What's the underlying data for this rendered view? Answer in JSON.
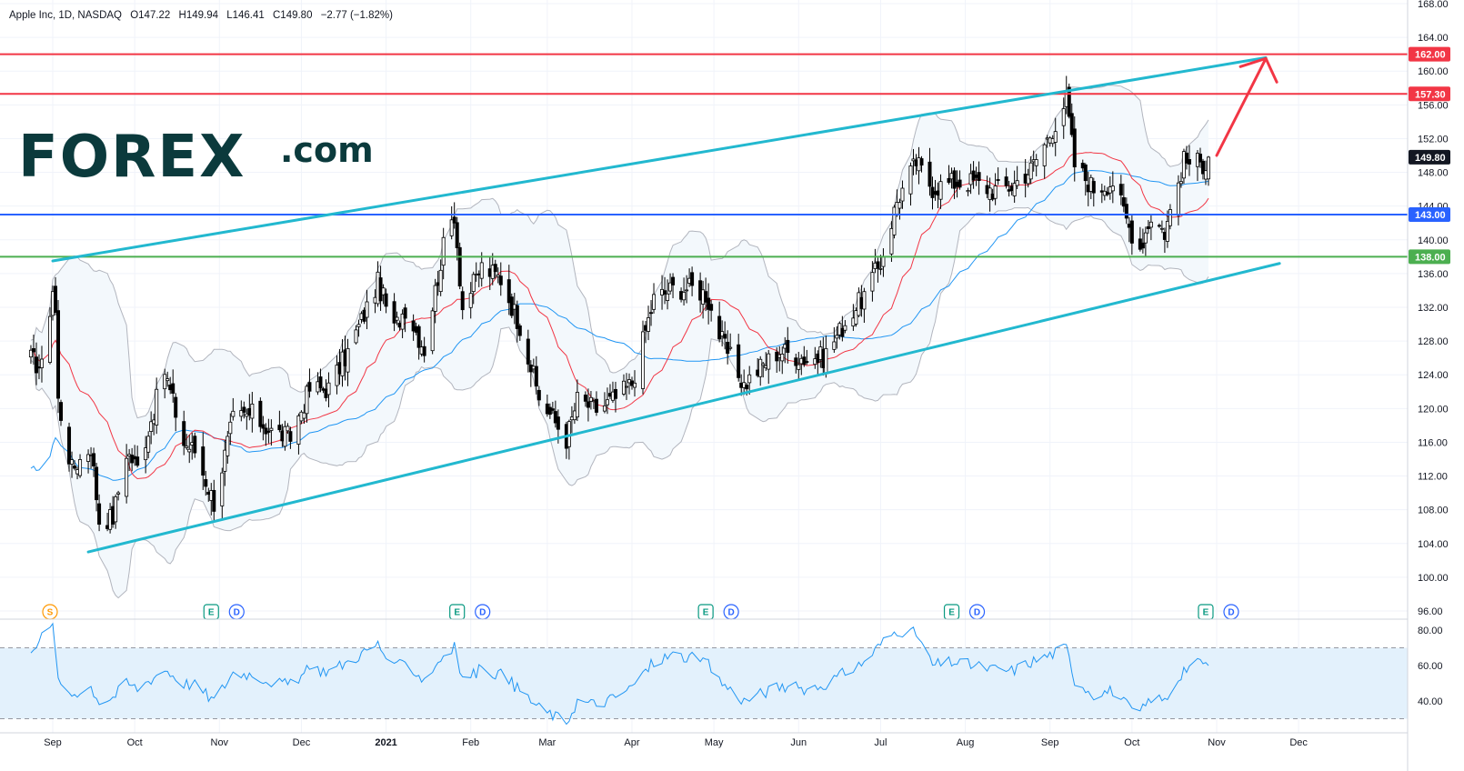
{
  "legend": {
    "symbol": "Apple Inc, 1D, NASDAQ",
    "open": "O147.22",
    "high": "H149.94",
    "low": "L146.41",
    "close": "C149.80",
    "change": "−2.77 (−1.82%)"
  },
  "logo": {
    "brand": "FOREX",
    "suffix": ".com"
  },
  "colors": {
    "up": "#ffffff",
    "down": "#000000",
    "candle_border": "#000000",
    "channel": "#22b8cf",
    "resistance": "#f23645",
    "support_blue": "#2962ff",
    "support_green": "#4caf50",
    "ma_fast": "#f23645",
    "ma_slow": "#2196f3",
    "bollinger": "#b2b5be",
    "bollinger_fill": "#f3f8fc",
    "rsi_line": "#2196f3",
    "rsi_fill": "#e3f1fc",
    "arrow": "#f23645",
    "last_price_bg": "#131722",
    "logo_main": "#0b3a3c",
    "logo_accent": "#2ecc71"
  },
  "chart_data": [
    {
      "type": "candlestick",
      "title": "Apple Inc, 1D, NASDAQ",
      "x_ticks": [
        "Sep",
        "Oct",
        "Nov",
        "Dec",
        "2021",
        "Feb",
        "Mar",
        "Apr",
        "May",
        "Jun",
        "Jul",
        "Aug",
        "Sep",
        "Oct",
        "Nov",
        "Dec"
      ],
      "y_ticks": [
        "168.00",
        "164.00",
        "160.00",
        "156.00",
        "152.00",
        "148.00",
        "144.00",
        "140.00",
        "136.00",
        "132.00",
        "128.00",
        "124.00",
        "120.00",
        "116.00",
        "112.00",
        "108.00",
        "104.00",
        "100.00",
        "96.00"
      ],
      "ylim": [
        94,
        168
      ],
      "close_anchors": [
        [
          "2020-08-24",
          125.9
        ],
        [
          "2020-08-28",
          124.8
        ],
        [
          "2020-09-01",
          134.2
        ],
        [
          "2020-09-02",
          131.4
        ],
        [
          "2020-09-03",
          120.9
        ],
        [
          "2020-09-08",
          112.8
        ],
        [
          "2020-09-15",
          115.5
        ],
        [
          "2020-09-18",
          106.8
        ],
        [
          "2020-09-23",
          107.1
        ],
        [
          "2020-09-28",
          114.9
        ],
        [
          "2020-10-02",
          113.0
        ],
        [
          "2020-10-12",
          124.4
        ],
        [
          "2020-10-19",
          115.9
        ],
        [
          "2020-10-23",
          115.0
        ],
        [
          "2020-10-30",
          108.9
        ],
        [
          "2020-11-06",
          118.7
        ],
        [
          "2020-11-13",
          119.3
        ],
        [
          "2020-11-20",
          117.3
        ],
        [
          "2020-11-27",
          116.6
        ],
        [
          "2020-12-04",
          122.3
        ],
        [
          "2020-12-11",
          122.4
        ],
        [
          "2020-12-18",
          126.7
        ],
        [
          "2020-12-29",
          134.9
        ],
        [
          "2021-01-04",
          129.4
        ],
        [
          "2021-01-08",
          132.0
        ],
        [
          "2021-01-15",
          127.1
        ],
        [
          "2021-01-22",
          139.1
        ],
        [
          "2021-01-26",
          143.2
        ],
        [
          "2021-01-29",
          131.9
        ],
        [
          "2021-02-05",
          136.8
        ],
        [
          "2021-02-12",
          135.4
        ],
        [
          "2021-02-19",
          129.9
        ],
        [
          "2021-02-26",
          121.3
        ],
        [
          "2021-03-08",
          116.4
        ],
        [
          "2021-03-12",
          121.0
        ],
        [
          "2021-03-19",
          119.9
        ],
        [
          "2021-03-26",
          121.2
        ],
        [
          "2021-04-01",
          123.0
        ],
        [
          "2021-04-09",
          133.0
        ],
        [
          "2021-04-16",
          134.2
        ],
        [
          "2021-04-23",
          134.3
        ],
        [
          "2021-04-28",
          133.6
        ],
        [
          "2021-05-04",
          127.9
        ],
        [
          "2021-05-12",
          122.8
        ],
        [
          "2021-05-18",
          124.9
        ],
        [
          "2021-05-25",
          126.9
        ],
        [
          "2021-06-04",
          125.9
        ],
        [
          "2021-06-10",
          126.1
        ],
        [
          "2021-06-18",
          130.2
        ],
        [
          "2021-06-25",
          133.4
        ],
        [
          "2021-07-01",
          137.3
        ],
        [
          "2021-07-07",
          144.6
        ],
        [
          "2021-07-14",
          149.2
        ],
        [
          "2021-07-20",
          146.2
        ],
        [
          "2021-07-27",
          146.8
        ],
        [
          "2021-08-04",
          146.9
        ],
        [
          "2021-08-11",
          145.9
        ],
        [
          "2021-08-18",
          146.4
        ],
        [
          "2021-08-25",
          148.4
        ],
        [
          "2021-09-01",
          152.5
        ],
        [
          "2021-09-07",
          156.7
        ],
        [
          "2021-09-10",
          148.9
        ],
        [
          "2021-09-17",
          146.1
        ],
        [
          "2021-09-24",
          146.9
        ],
        [
          "2021-09-30",
          141.5
        ],
        [
          "2021-10-04",
          139.1
        ],
        [
          "2021-10-08",
          142.9
        ],
        [
          "2021-10-13",
          140.9
        ],
        [
          "2021-10-20",
          149.3
        ],
        [
          "2021-10-27",
          149.0
        ],
        [
          "2021-10-29",
          149.8
        ]
      ],
      "series": [
        {
          "name": "",
          "kind": "moving-average-fast",
          "values": []
        },
        {
          "name": "",
          "kind": "moving-average-slow",
          "values": []
        },
        {
          "name": "",
          "kind": "bollinger-bands",
          "values": []
        }
      ],
      "price_labels": [
        {
          "text": "162.00",
          "value": 162,
          "color": "#f23645"
        },
        {
          "text": "157.30",
          "value": 157.3,
          "color": "#f23645"
        },
        {
          "text": "149.80",
          "value": 149.8,
          "color": "#131722"
        },
        {
          "text": "143.00",
          "value": 143,
          "color": "#2962ff"
        },
        {
          "text": "138.00",
          "value": 138,
          "color": "#4caf50"
        }
      ],
      "horizontal_levels": [
        {
          "value": 162,
          "color": "#f23645"
        },
        {
          "value": 157.3,
          "color": "#f23645"
        },
        {
          "value": 143,
          "color": "#2962ff"
        },
        {
          "value": 138,
          "color": "#4caf50"
        }
      ],
      "channel": {
        "upper": [
          [
            "2020-09-01",
            137.5
          ],
          [
            "2021-11-19",
            161.6
          ]
        ],
        "lower": [
          [
            "2020-09-14",
            103.0
          ],
          [
            "2021-11-24",
            137.2
          ]
        ]
      },
      "arrow": [
        [
          "2021-11-01",
          150.0
        ],
        [
          "2021-11-19",
          161.5
        ]
      ],
      "events": [
        {
          "date": "2020-08-31",
          "labels": [
            "S"
          ],
          "colors": [
            "#ff9800"
          ]
        },
        {
          "date": "2020-10-29",
          "labels": [
            "E",
            "D"
          ],
          "colors": [
            "#089981",
            "#2962ff"
          ]
        },
        {
          "date": "2021-01-27",
          "labels": [
            "E",
            "D"
          ],
          "colors": [
            "#089981",
            "#2962ff"
          ]
        },
        {
          "date": "2021-04-28",
          "labels": [
            "E",
            "D"
          ],
          "colors": [
            "#089981",
            "#2962ff"
          ]
        },
        {
          "date": "2021-07-27",
          "labels": [
            "E",
            "D"
          ],
          "colors": [
            "#089981",
            "#2962ff"
          ]
        },
        {
          "date": "2021-10-28",
          "labels": [
            "E",
            "D"
          ],
          "colors": [
            "#089981",
            "#2962ff"
          ]
        }
      ]
    },
    {
      "type": "line",
      "title": "",
      "y_ticks": [
        "80.00",
        "60.00",
        "40.00"
      ],
      "ylim": [
        26,
        82
      ],
      "bands": [
        70,
        30
      ],
      "values": [
        [
          "2020-08-24",
          70
        ],
        [
          "2020-08-28",
          76
        ],
        [
          "2020-09-01",
          82
        ],
        [
          "2020-09-02",
          70
        ],
        [
          "2020-09-03",
          50
        ],
        [
          "2020-09-08",
          44
        ],
        [
          "2020-09-15",
          48
        ],
        [
          "2020-09-18",
          40
        ],
        [
          "2020-09-23",
          42
        ],
        [
          "2020-09-28",
          50
        ],
        [
          "2020-10-02",
          47
        ],
        [
          "2020-10-12",
          58
        ],
        [
          "2020-10-19",
          50
        ],
        [
          "2020-10-23",
          49
        ],
        [
          "2020-10-30",
          40
        ],
        [
          "2020-11-06",
          56
        ],
        [
          "2020-11-13",
          55
        ],
        [
          "2020-11-20",
          51
        ],
        [
          "2020-11-27",
          49
        ],
        [
          "2020-12-04",
          58
        ],
        [
          "2020-12-11",
          57
        ],
        [
          "2020-12-18",
          62
        ],
        [
          "2020-12-29",
          72
        ],
        [
          "2021-01-04",
          58
        ],
        [
          "2021-01-08",
          62
        ],
        [
          "2021-01-15",
          52
        ],
        [
          "2021-01-22",
          66
        ],
        [
          "2021-01-26",
          70
        ],
        [
          "2021-01-29",
          52
        ],
        [
          "2021-02-05",
          58
        ],
        [
          "2021-02-12",
          55
        ],
        [
          "2021-02-19",
          46
        ],
        [
          "2021-02-26",
          36
        ],
        [
          "2021-03-08",
          28
        ],
        [
          "2021-03-12",
          40
        ],
        [
          "2021-03-19",
          38
        ],
        [
          "2021-03-26",
          42
        ],
        [
          "2021-04-01",
          48
        ],
        [
          "2021-04-09",
          62
        ],
        [
          "2021-04-16",
          66
        ],
        [
          "2021-04-23",
          64
        ],
        [
          "2021-04-28",
          62
        ],
        [
          "2021-05-04",
          50
        ],
        [
          "2021-05-12",
          40
        ],
        [
          "2021-05-18",
          44
        ],
        [
          "2021-05-25",
          48
        ],
        [
          "2021-06-04",
          47
        ],
        [
          "2021-06-10",
          49
        ],
        [
          "2021-06-18",
          56
        ],
        [
          "2021-06-25",
          62
        ],
        [
          "2021-07-01",
          72
        ],
        [
          "2021-07-07",
          80
        ],
        [
          "2021-07-14",
          78
        ],
        [
          "2021-07-20",
          60
        ],
        [
          "2021-07-27",
          62
        ],
        [
          "2021-08-04",
          60
        ],
        [
          "2021-08-11",
          58
        ],
        [
          "2021-08-18",
          57
        ],
        [
          "2021-08-25",
          62
        ],
        [
          "2021-09-01",
          66
        ],
        [
          "2021-09-07",
          70
        ],
        [
          "2021-09-10",
          52
        ],
        [
          "2021-09-17",
          44
        ],
        [
          "2021-09-24",
          46
        ],
        [
          "2021-09-30",
          36
        ],
        [
          "2021-10-04",
          33
        ],
        [
          "2021-10-08",
          42
        ],
        [
          "2021-10-13",
          40
        ],
        [
          "2021-10-20",
          58
        ],
        [
          "2021-10-27",
          62
        ],
        [
          "2021-10-29",
          60
        ]
      ]
    }
  ]
}
